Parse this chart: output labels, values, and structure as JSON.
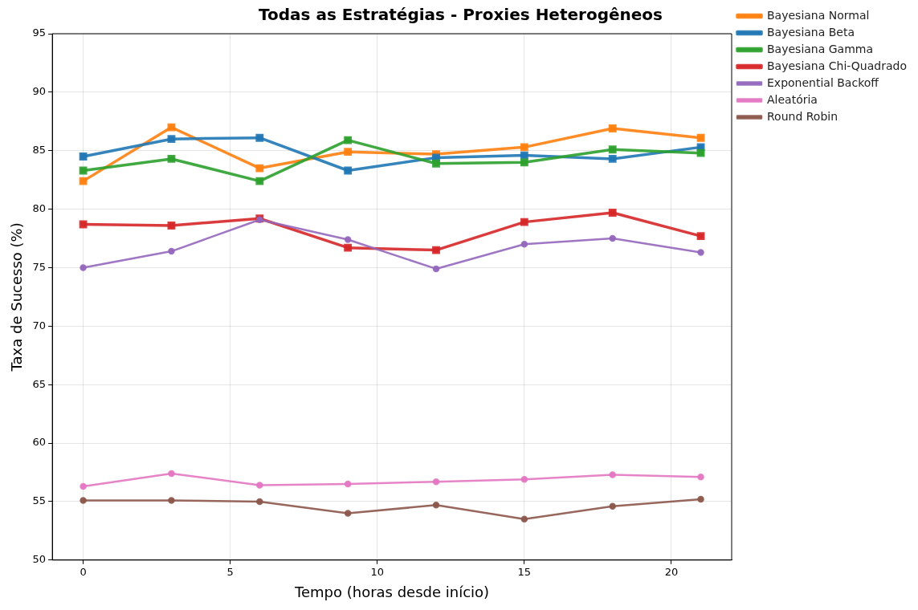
{
  "chart_data": {
    "type": "line",
    "title": "Todas as Estratégias - Proxies Heterogêneos",
    "xlabel": "Tempo (horas desde início)",
    "ylabel": "Taxa de Sucesso (%)",
    "x": [
      0,
      3,
      6,
      9,
      12,
      15,
      18,
      21
    ],
    "xlim": [
      -1.05,
      22.05
    ],
    "xticks": [
      0,
      5,
      10,
      15,
      20
    ],
    "ylim": [
      50,
      95
    ],
    "yticks": [
      50,
      55,
      60,
      65,
      70,
      75,
      80,
      85,
      90,
      95
    ],
    "grid": true,
    "legend": "top right",
    "line_style": "solid",
    "series": [
      {
        "name": "Bayesiana Normal",
        "color": "#ff7f0e",
        "marker": "square",
        "values": [
          82.4,
          87.0,
          83.5,
          84.9,
          84.7,
          85.3,
          86.9,
          86.1
        ]
      },
      {
        "name": "Bayesiana Beta",
        "color": "#1f77b4",
        "marker": "square",
        "values": [
          84.5,
          86.0,
          86.1,
          83.3,
          84.4,
          84.6,
          84.3,
          85.3
        ]
      },
      {
        "name": "Bayesiana Gamma",
        "color": "#2ca02c",
        "marker": "square",
        "values": [
          83.3,
          84.3,
          82.4,
          85.9,
          83.9,
          84.0,
          85.1,
          84.8
        ]
      },
      {
        "name": "Bayesiana Chi-Quadrado",
        "color": "#d62728",
        "marker": "square",
        "values": [
          78.7,
          78.6,
          79.2,
          76.7,
          76.5,
          78.9,
          79.7,
          77.7
        ]
      },
      {
        "name": "Exponential Backoff",
        "color": "#9467bd",
        "marker": "circle",
        "values": [
          75.0,
          76.4,
          79.1,
          77.4,
          74.9,
          77.0,
          77.5,
          76.3
        ]
      },
      {
        "name": "Aleatória",
        "color": "#e377c2",
        "marker": "circle",
        "values": [
          56.3,
          57.4,
          56.4,
          56.5,
          56.7,
          56.9,
          57.3,
          57.1
        ]
      },
      {
        "name": "Round Robin",
        "color": "#8c564b",
        "marker": "circle",
        "values": [
          55.1,
          55.1,
          55.0,
          54.0,
          54.7,
          53.5,
          54.6,
          55.2
        ]
      }
    ]
  }
}
